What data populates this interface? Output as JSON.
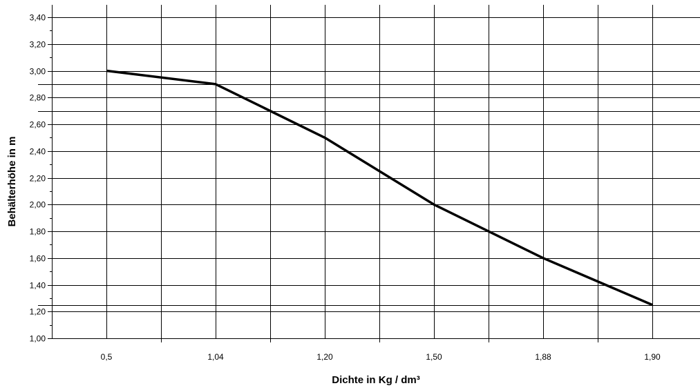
{
  "chart_data": {
    "type": "line",
    "title": "",
    "xlabel": "Dichte in Kg / dm³",
    "ylabel": "Behälterhöhe in m",
    "categories": [
      "0,5",
      "1,04",
      "1,20",
      "1,50",
      "1,88",
      "1,90"
    ],
    "x_axis_type": "category",
    "ylim": [
      1.0,
      3.4
    ],
    "y_major_step": 0.2,
    "y_minor_step": 0.1,
    "y_decimal_separator": ",",
    "grid": true,
    "legend": "none",
    "series": [
      {
        "values": [
          3.0,
          2.9,
          2.5,
          2.0,
          1.6,
          1.25
        ],
        "color": "#000000"
      }
    ],
    "reference_lines_y": [
      2.9,
      2.7,
      1.25
    ]
  }
}
